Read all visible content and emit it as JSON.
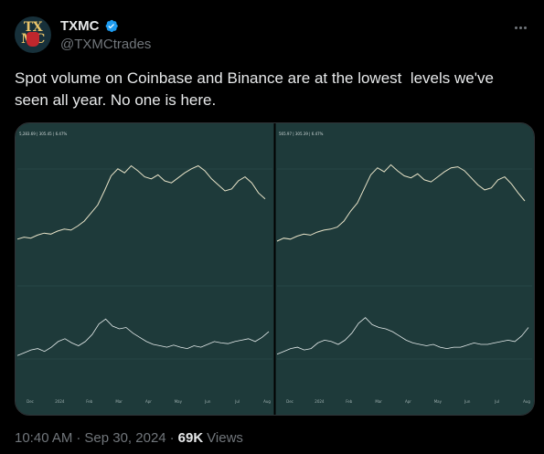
{
  "author": {
    "display_name": "TXMC",
    "handle": "@TXMCtrades",
    "avatar_text": "TX\nMC",
    "verified_color": "#1d9bf0"
  },
  "tweet": {
    "text": "Spot volume on Coinbase and Binance are at the lowest  levels we've seen all year. No one is here."
  },
  "media": {
    "background": "#1e3a3a",
    "panels": [
      {
        "header_label": "5,283.69 | 305.45 | 6.47%",
        "x_ticks": [
          "Dec",
          "2024",
          "Feb",
          "Mar",
          "Apr",
          "May",
          "Jun",
          "Jul",
          "Aug"
        ],
        "price_series": [
          0.12,
          0.14,
          0.13,
          0.16,
          0.18,
          0.17,
          0.2,
          0.22,
          0.21,
          0.25,
          0.3,
          0.38,
          0.46,
          0.6,
          0.75,
          0.82,
          0.78,
          0.85,
          0.8,
          0.74,
          0.72,
          0.76,
          0.7,
          0.68,
          0.73,
          0.78,
          0.82,
          0.85,
          0.8,
          0.72,
          0.66,
          0.6,
          0.62,
          0.7,
          0.74,
          0.68,
          0.58,
          0.52
        ],
        "volume_series": [
          0.1,
          0.14,
          0.18,
          0.2,
          0.16,
          0.22,
          0.3,
          0.34,
          0.28,
          0.24,
          0.3,
          0.4,
          0.55,
          0.62,
          0.52,
          0.48,
          0.5,
          0.42,
          0.36,
          0.3,
          0.26,
          0.24,
          0.22,
          0.25,
          0.22,
          0.2,
          0.24,
          0.22,
          0.26,
          0.3,
          0.28,
          0.27,
          0.3,
          0.32,
          0.34,
          0.3,
          0.36,
          0.44
        ]
      },
      {
        "header_label": "565.97 | 305.39 | 6.47%",
        "x_ticks": [
          "Dec",
          "2024",
          "Feb",
          "Mar",
          "Apr",
          "May",
          "Jun",
          "Jul",
          "Aug"
        ],
        "price_series": [
          0.1,
          0.13,
          0.12,
          0.15,
          0.17,
          0.16,
          0.19,
          0.21,
          0.22,
          0.24,
          0.3,
          0.4,
          0.48,
          0.62,
          0.76,
          0.83,
          0.79,
          0.86,
          0.8,
          0.75,
          0.73,
          0.77,
          0.71,
          0.69,
          0.74,
          0.79,
          0.83,
          0.84,
          0.8,
          0.73,
          0.66,
          0.61,
          0.63,
          0.71,
          0.74,
          0.67,
          0.58,
          0.5
        ],
        "volume_series": [
          0.12,
          0.16,
          0.2,
          0.22,
          0.18,
          0.2,
          0.28,
          0.32,
          0.3,
          0.26,
          0.32,
          0.42,
          0.56,
          0.64,
          0.54,
          0.5,
          0.48,
          0.44,
          0.38,
          0.32,
          0.28,
          0.26,
          0.24,
          0.26,
          0.22,
          0.2,
          0.22,
          0.22,
          0.25,
          0.28,
          0.26,
          0.26,
          0.28,
          0.3,
          0.32,
          0.3,
          0.38,
          0.5
        ]
      }
    ]
  },
  "footer": {
    "time": "10:40 AM",
    "date": "Sep 30, 2024",
    "views_count": "69K",
    "views_label": "Views",
    "separator": "·"
  }
}
